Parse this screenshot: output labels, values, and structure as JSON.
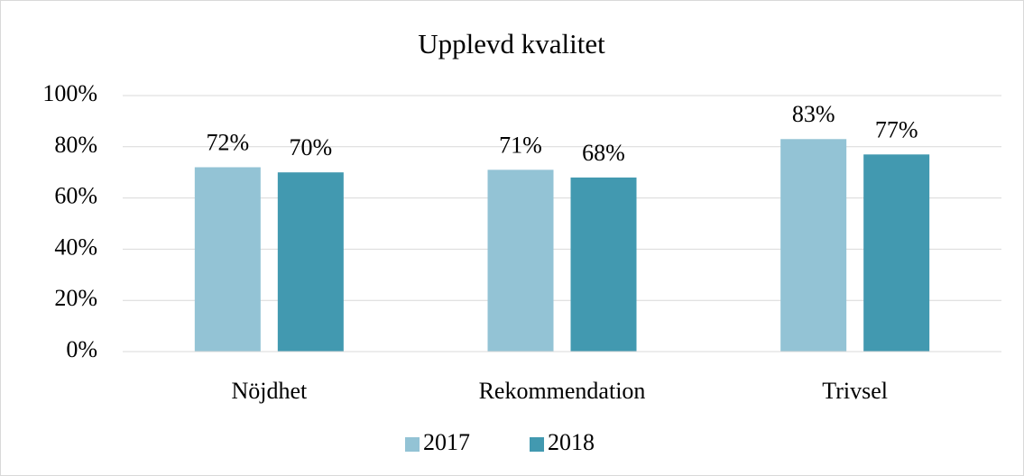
{
  "chart_data": {
    "type": "bar",
    "title": "Upplevd kvalitet",
    "categories": [
      "Nöjdhet",
      "Rekommendation",
      "Trivsel"
    ],
    "series": [
      {
        "name": "2017",
        "color": "#93c3d5",
        "values": [
          72,
          71,
          83
        ],
        "value_labels": [
          "72%",
          "71%",
          "83%"
        ]
      },
      {
        "name": "2018",
        "color": "#4299b0",
        "values": [
          70,
          68,
          77
        ],
        "value_labels": [
          "70%",
          "68%",
          "77%"
        ]
      }
    ],
    "ylim": [
      0,
      100
    ],
    "yticks": [
      {
        "value": 0,
        "label": "0%"
      },
      {
        "value": 20,
        "label": "20%"
      },
      {
        "value": 40,
        "label": "40%"
      },
      {
        "value": 60,
        "label": "60%"
      },
      {
        "value": 80,
        "label": "80%"
      },
      {
        "value": 100,
        "label": "100%"
      }
    ],
    "grid": true,
    "legend": "bottom"
  }
}
